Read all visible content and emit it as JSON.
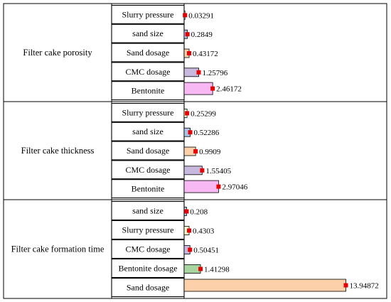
{
  "chart_data": {
    "type": "bar",
    "orientation": "horizontal",
    "grouped_by": "response variable",
    "groups": [
      {
        "name": "Filter cake porosity",
        "categories": [
          "Slurry pressure",
          "sand size",
          "Sand dosage",
          "CMC dosage",
          "Bentonite"
        ],
        "values": [
          0.03291,
          0.2849,
          0.43172,
          1.25796,
          2.46172
        ],
        "labels": [
          "0.03291",
          "0.2849",
          "0.43172",
          "1.25796",
          "2.46172"
        ]
      },
      {
        "name": "Filter cake thickness",
        "categories": [
          "Slurry pressure",
          "sand size",
          "Sand dosage",
          "CMC dosage",
          "Bentonite"
        ],
        "values": [
          0.25299,
          0.52286,
          0.9909,
          1.55405,
          2.97046
        ],
        "labels": [
          "0.25299",
          "0.52286",
          "0.9909",
          "1.55405",
          "2.97046"
        ]
      },
      {
        "name": "Filter cake formation time",
        "categories": [
          "sand size",
          "Slurry pressure",
          "CMC dosage",
          "Bentonite dosage",
          "Sand dosage"
        ],
        "values": [
          0.208,
          0.4303,
          0.50451,
          1.41298,
          13.94872
        ],
        "labels": [
          "0.208",
          "0.4303",
          "0.50451",
          "1.41298",
          "13.94872"
        ]
      }
    ],
    "factor_colors": {
      "Slurry pressure": "#ffffcc",
      "sand size": "#a9c4ea",
      "Sand dosage": "#fcd0a8",
      "CMC dosage": "#c7b8dd",
      "Bentonite": "#f8b8f4",
      "Bentonite dosage": "#a6d5a0"
    },
    "marker_color": "#e60000",
    "bar_edge_color": "#000000",
    "xlim": [
      0,
      14.5
    ],
    "grid": false,
    "legend": "none"
  }
}
